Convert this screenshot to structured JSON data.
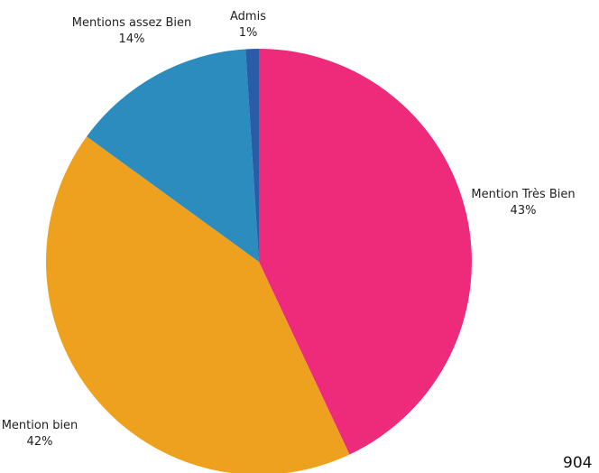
{
  "chart_data": {
    "type": "pie",
    "title": "",
    "start_angle_deg": 0,
    "direction": "clockwise",
    "slices": [
      {
        "label": "Mention Très Bien",
        "value": 43,
        "pct_text": "43%",
        "color": "#EE2A7B"
      },
      {
        "label": "Mention bien",
        "value": 42,
        "pct_text": "42%",
        "color": "#EEA11F"
      },
      {
        "label": "Mentions assez Bien",
        "value": 14,
        "pct_text": "14%",
        "color": "#2C8CBE"
      },
      {
        "label": "Admis",
        "value": 1,
        "pct_text": "1%",
        "color": "#2A5CA8"
      }
    ]
  },
  "corner_text": "904"
}
